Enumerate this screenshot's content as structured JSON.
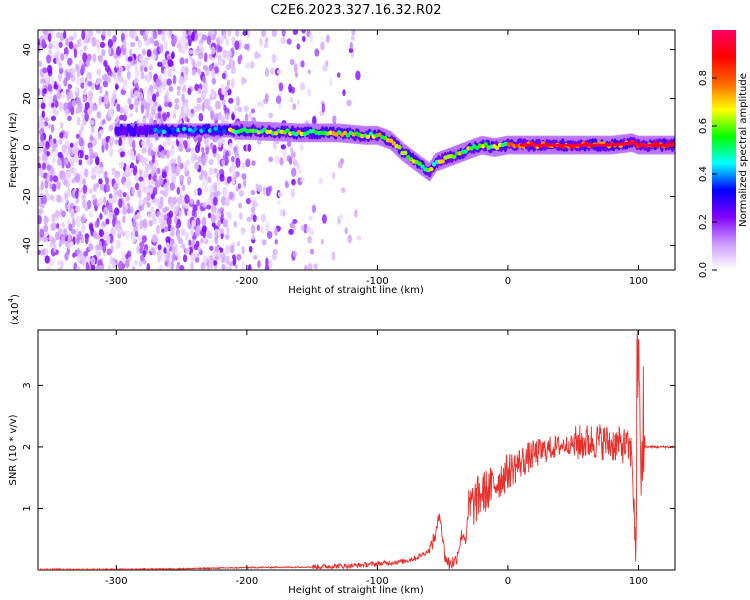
{
  "figure": {
    "title": "C2E6.2023.327.16.32.R02"
  },
  "chart_data": [
    {
      "type": "heatmap",
      "xlabel": "Height of straight line (km)",
      "ylabel": "Frequency (Hz)",
      "xlim": [
        -360,
        128
      ],
      "ylim": [
        -50,
        48
      ],
      "xticks": [
        -300,
        -200,
        -100,
        0,
        100
      ],
      "yticks": [
        -40,
        -20,
        0,
        20,
        40
      ],
      "grid": false,
      "colorbar": {
        "label": "Normalized spectral amplitude",
        "range": [
          0.0,
          1.0
        ],
        "ticks": [
          "0.0",
          "0.2",
          "0.4",
          "0.6",
          "0.8"
        ],
        "colormap": [
          "#ffffff",
          "#cc99ff",
          "#7f00ff",
          "#0000ff",
          "#00ffff",
          "#00ff00",
          "#ffff00",
          "#ff6600",
          "#ff0000",
          "#ff0066"
        ]
      },
      "ridge": {
        "x": [
          -290,
          -250,
          -220,
          -200,
          -160,
          -130,
          -110,
          -100,
          -90,
          -80,
          -70,
          -60,
          -55,
          -50,
          -40,
          -30,
          -20,
          -10,
          0,
          20,
          50,
          80,
          95,
          100,
          128
        ],
        "y": [
          7,
          7,
          7,
          7,
          6,
          6,
          5,
          5,
          3,
          -2,
          -6,
          -10,
          -6,
          -5,
          -3,
          -1,
          1,
          0,
          1,
          1,
          1,
          1,
          2,
          1,
          1
        ]
      }
    },
    {
      "type": "line",
      "xlabel": "Height of straight line (km)",
      "ylabel": "SNR (10 * v/v)",
      "y_multiplier_label": "(x10",
      "y_multiplier_exp": "4",
      "y_multiplier_close": ")",
      "xlim": [
        -360,
        128
      ],
      "ylim": [
        0,
        3.9
      ],
      "xticks": [
        -300,
        -200,
        -100,
        0,
        100
      ],
      "yticks": [
        1,
        2,
        3
      ],
      "color": "#e8302c",
      "series": [
        {
          "x": [
            -360,
            -300,
            -250,
            -200,
            -150,
            -120,
            -100,
            -80,
            -70,
            -60,
            -55,
            -52,
            -50,
            -48,
            -45,
            -40,
            -35,
            -32,
            -30,
            -25,
            -20,
            -15,
            -10,
            -5,
            0,
            10,
            20,
            30,
            40,
            50,
            60,
            70,
            80,
            90,
            95,
            98,
            100,
            102,
            105,
            110,
            128
          ],
          "y": [
            0.01,
            0.01,
            0.02,
            0.04,
            0.05,
            0.07,
            0.1,
            0.14,
            0.2,
            0.32,
            0.6,
            0.95,
            0.5,
            0.2,
            0.1,
            0.15,
            0.6,
            0.5,
            1.0,
            1.1,
            1.25,
            1.3,
            1.4,
            1.5,
            1.6,
            1.75,
            1.88,
            1.96,
            2.02,
            2.05,
            2.08,
            2.1,
            2.05,
            2.02,
            1.9,
            0.2,
            3.85,
            1.5,
            2.0,
            2.0,
            2.0
          ]
        }
      ]
    }
  ]
}
